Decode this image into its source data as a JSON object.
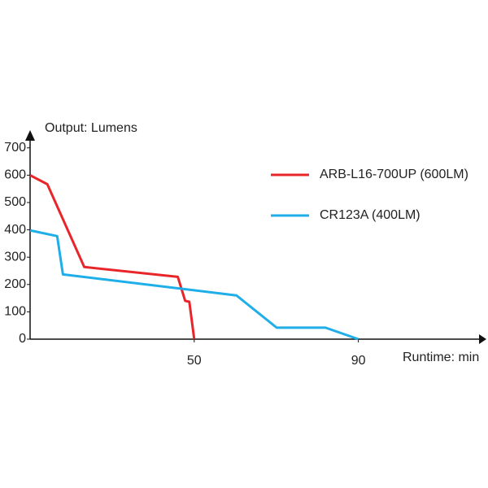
{
  "chart_data": {
    "type": "line",
    "y_label": "Output: Lumens",
    "x_label": "Runtime: min",
    "xlim": [
      10,
      121
    ],
    "ylim": [
      0,
      750
    ],
    "xticks": [
      50,
      90
    ],
    "yticks": [
      0,
      100,
      200,
      300,
      400,
      500,
      600,
      700
    ],
    "legend": "upper right",
    "series": [
      {
        "name": "ARB-L16-700UP (600LM)",
        "color": "#e8262a",
        "x": [
          10,
          14.2,
          23.2,
          46,
          47.8,
          48.8,
          50
        ],
        "values": [
          600,
          567,
          264,
          228,
          140,
          137,
          0
        ]
      },
      {
        "name": "CR123A (400LM)",
        "color": "#1eaee8",
        "x": [
          10,
          16.6,
          18,
          60.3,
          70.1,
          82,
          90
        ],
        "values": [
          398,
          377,
          237,
          160,
          42,
          42,
          0
        ]
      }
    ]
  }
}
